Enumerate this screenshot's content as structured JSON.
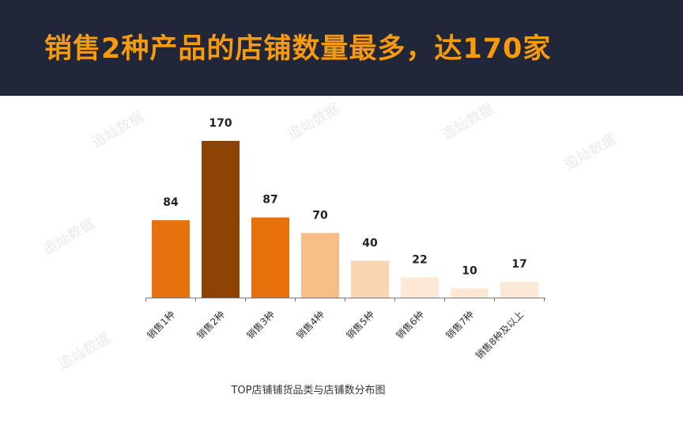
{
  "header": {
    "headline": "销售2种产品的店铺数量最多，达170家",
    "background_color": "#212638",
    "headline_color": "#f79a0e"
  },
  "watermark": {
    "text": "追灿数据"
  },
  "chart_data": {
    "type": "bar",
    "title": "TOP店铺铺货品类与店铺数分布图",
    "xlabel": "",
    "ylabel": "",
    "categories": [
      "销售1种",
      "销售2种",
      "销售3种",
      "销售4种",
      "销售5种",
      "销售6种",
      "销售7种",
      "销售8种及以上"
    ],
    "values": [
      84,
      170,
      87,
      70,
      40,
      22,
      10,
      17
    ],
    "bar_colors": [
      "#e8710d",
      "#8c4304",
      "#e8710d",
      "#f8bd86",
      "#fbd6b3",
      "#fde8d6",
      "#fde8d6",
      "#fde8d6"
    ],
    "ylim": [
      0,
      170
    ],
    "grid": false,
    "data_labels": true
  }
}
